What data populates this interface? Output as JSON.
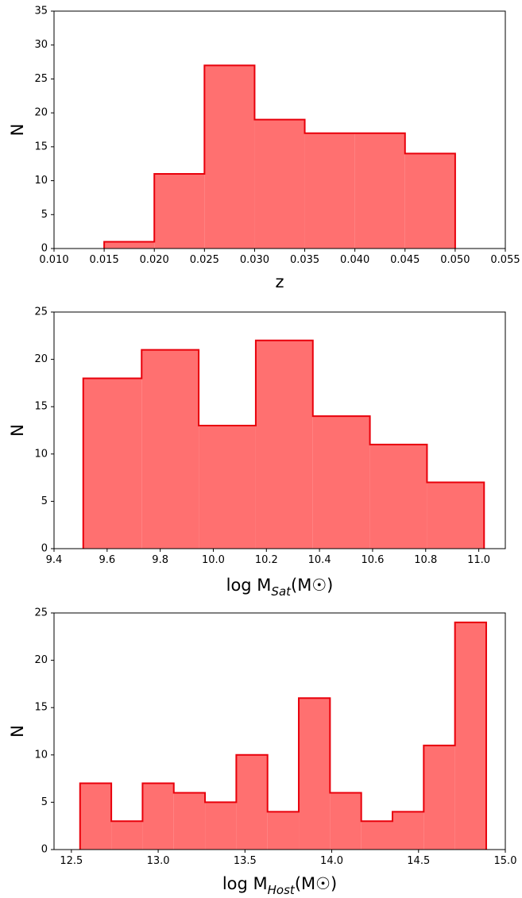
{
  "chart_data": [
    {
      "type": "histogram",
      "xlabel": "z",
      "ylabel": "N",
      "xlim": [
        0.01,
        0.055
      ],
      "ylim": [
        0,
        35
      ],
      "xticks": [
        "0.010",
        "0.015",
        "0.020",
        "0.025",
        "0.030",
        "0.035",
        "0.040",
        "0.045",
        "0.050",
        "0.055"
      ],
      "yticks": [
        "0",
        "5",
        "10",
        "15",
        "20",
        "25",
        "30",
        "35"
      ],
      "bin_edges": [
        0.015,
        0.02,
        0.025,
        0.03,
        0.035,
        0.04,
        0.045,
        0.05
      ],
      "values": [
        1,
        11,
        27,
        19,
        17,
        17,
        14
      ],
      "fill_color": "#ff7070",
      "edge_color": "#e8000b"
    },
    {
      "type": "histogram",
      "xlabel": "log M",
      "xlabel_sub": "Sat",
      "xlabel_suffix": "(M☉)",
      "ylabel": "N",
      "xlim": [
        9.4,
        11.1
      ],
      "ylim": [
        0,
        25
      ],
      "xticks": [
        "9.4",
        "9.6",
        "9.8",
        "10.0",
        "10.2",
        "10.4",
        "10.6",
        "10.8",
        "11.0"
      ],
      "yticks": [
        "0",
        "5",
        "10",
        "15",
        "20",
        "25"
      ],
      "bin_edges": [
        9.51,
        9.73,
        9.945,
        10.16,
        10.375,
        10.59,
        10.805,
        11.02
      ],
      "values": [
        18,
        21,
        13,
        22,
        14,
        11,
        7
      ],
      "fill_color": "#ff7070",
      "edge_color": "#e8000b"
    },
    {
      "type": "histogram",
      "xlabel": "log M",
      "xlabel_sub": "Host",
      "xlabel_suffix": "(M☉)",
      "ylabel": "N",
      "xlim": [
        12.4,
        15.0
      ],
      "ylim": [
        0,
        25
      ],
      "xticks": [
        "12.5",
        "13.0",
        "13.5",
        "14.0",
        "14.5",
        "15.0"
      ],
      "yticks": [
        "0",
        "5",
        "10",
        "15",
        "20",
        "25"
      ],
      "bin_edges": [
        12.55,
        12.73,
        12.91,
        13.09,
        13.27,
        13.45,
        13.63,
        13.81,
        13.99,
        14.17,
        14.35,
        14.53,
        14.71,
        14.89
      ],
      "values": [
        7,
        3,
        7,
        6,
        5,
        10,
        4,
        16,
        6,
        3,
        4,
        11,
        24
      ],
      "fill_color": "#ff7070",
      "edge_color": "#e8000b"
    }
  ]
}
